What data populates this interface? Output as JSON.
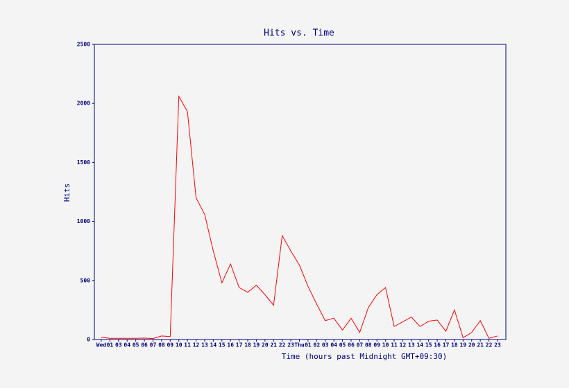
{
  "chart_data": {
    "type": "line",
    "title": "Hits vs. Time",
    "x_label": "Time (hours past Midnight GMT+09:30)",
    "y_label": "Hits",
    "categories": [
      "Wed",
      "01",
      "03",
      "04",
      "05",
      "06",
      "07",
      "08",
      "09",
      "10",
      "11",
      "12",
      "13",
      "14",
      "15",
      "16",
      "17",
      "18",
      "19",
      "20",
      "21",
      "22",
      "23",
      "Thu",
      "01",
      "02",
      "03",
      "04",
      "05",
      "06",
      "07",
      "08",
      "09",
      "10",
      "11",
      "12",
      "13",
      "14",
      "15",
      "16",
      "17",
      "18",
      "19",
      "20",
      "21",
      "22",
      "23"
    ],
    "values": [
      18,
      10,
      10,
      10,
      10,
      12,
      8,
      30,
      25,
      2060,
      1930,
      1200,
      1060,
      750,
      480,
      640,
      440,
      400,
      460,
      380,
      290,
      880,
      750,
      630,
      450,
      300,
      160,
      180,
      80,
      180,
      60,
      270,
      380,
      440,
      110,
      150,
      190,
      110,
      155,
      165,
      70,
      250,
      15,
      60,
      160,
      10,
      30
    ],
    "color": "#ff0000",
    "axis_color": "#000080",
    "ylim": [
      0,
      2500
    ],
    "yticks": [
      0,
      500,
      1000,
      1500,
      2000,
      2500
    ],
    "grid": false
  }
}
